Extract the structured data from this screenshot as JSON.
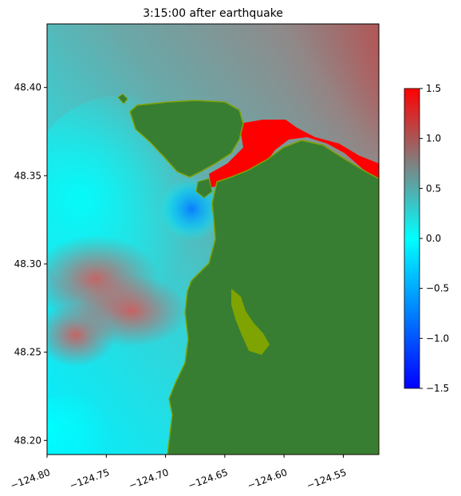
{
  "title": "3:15:00 after earthquake",
  "map": {
    "x_ticks": [
      "−124.80",
      "−124.75",
      "−124.70",
      "−124.65",
      "−124.60",
      "−124.55"
    ],
    "x_tick_values": [
      -124.8,
      -124.75,
      -124.7,
      -124.65,
      -124.6,
      -124.55
    ],
    "xlim": [
      -124.8,
      -124.52
    ],
    "y_ticks": [
      "48.20",
      "48.25",
      "48.30",
      "48.35",
      "48.40"
    ],
    "y_tick_values": [
      48.2,
      48.25,
      48.3,
      48.35,
      48.4
    ],
    "ylim": [
      48.192,
      48.436
    ]
  },
  "colorbar": {
    "ticks": [
      "−1.5",
      "−1.0",
      "−0.5",
      "0.0",
      "0.5",
      "1.0",
      "1.5"
    ],
    "tick_values": [
      -1.5,
      -1.0,
      -0.5,
      0.0,
      0.5,
      1.0,
      1.5
    ],
    "range": [
      -1.5,
      1.5
    ],
    "colors": [
      "#0000ff",
      "#00ffff",
      "#808080",
      "#ff0000"
    ]
  },
  "colors": {
    "land": "#377e33",
    "land_edge": "#7fa300",
    "water_cyan": "#00e8f0",
    "water_teal": "#4fb8b8",
    "water_gray": "#8c8c8c",
    "water_red": "#e84040",
    "water_blue": "#0a8cff"
  }
}
